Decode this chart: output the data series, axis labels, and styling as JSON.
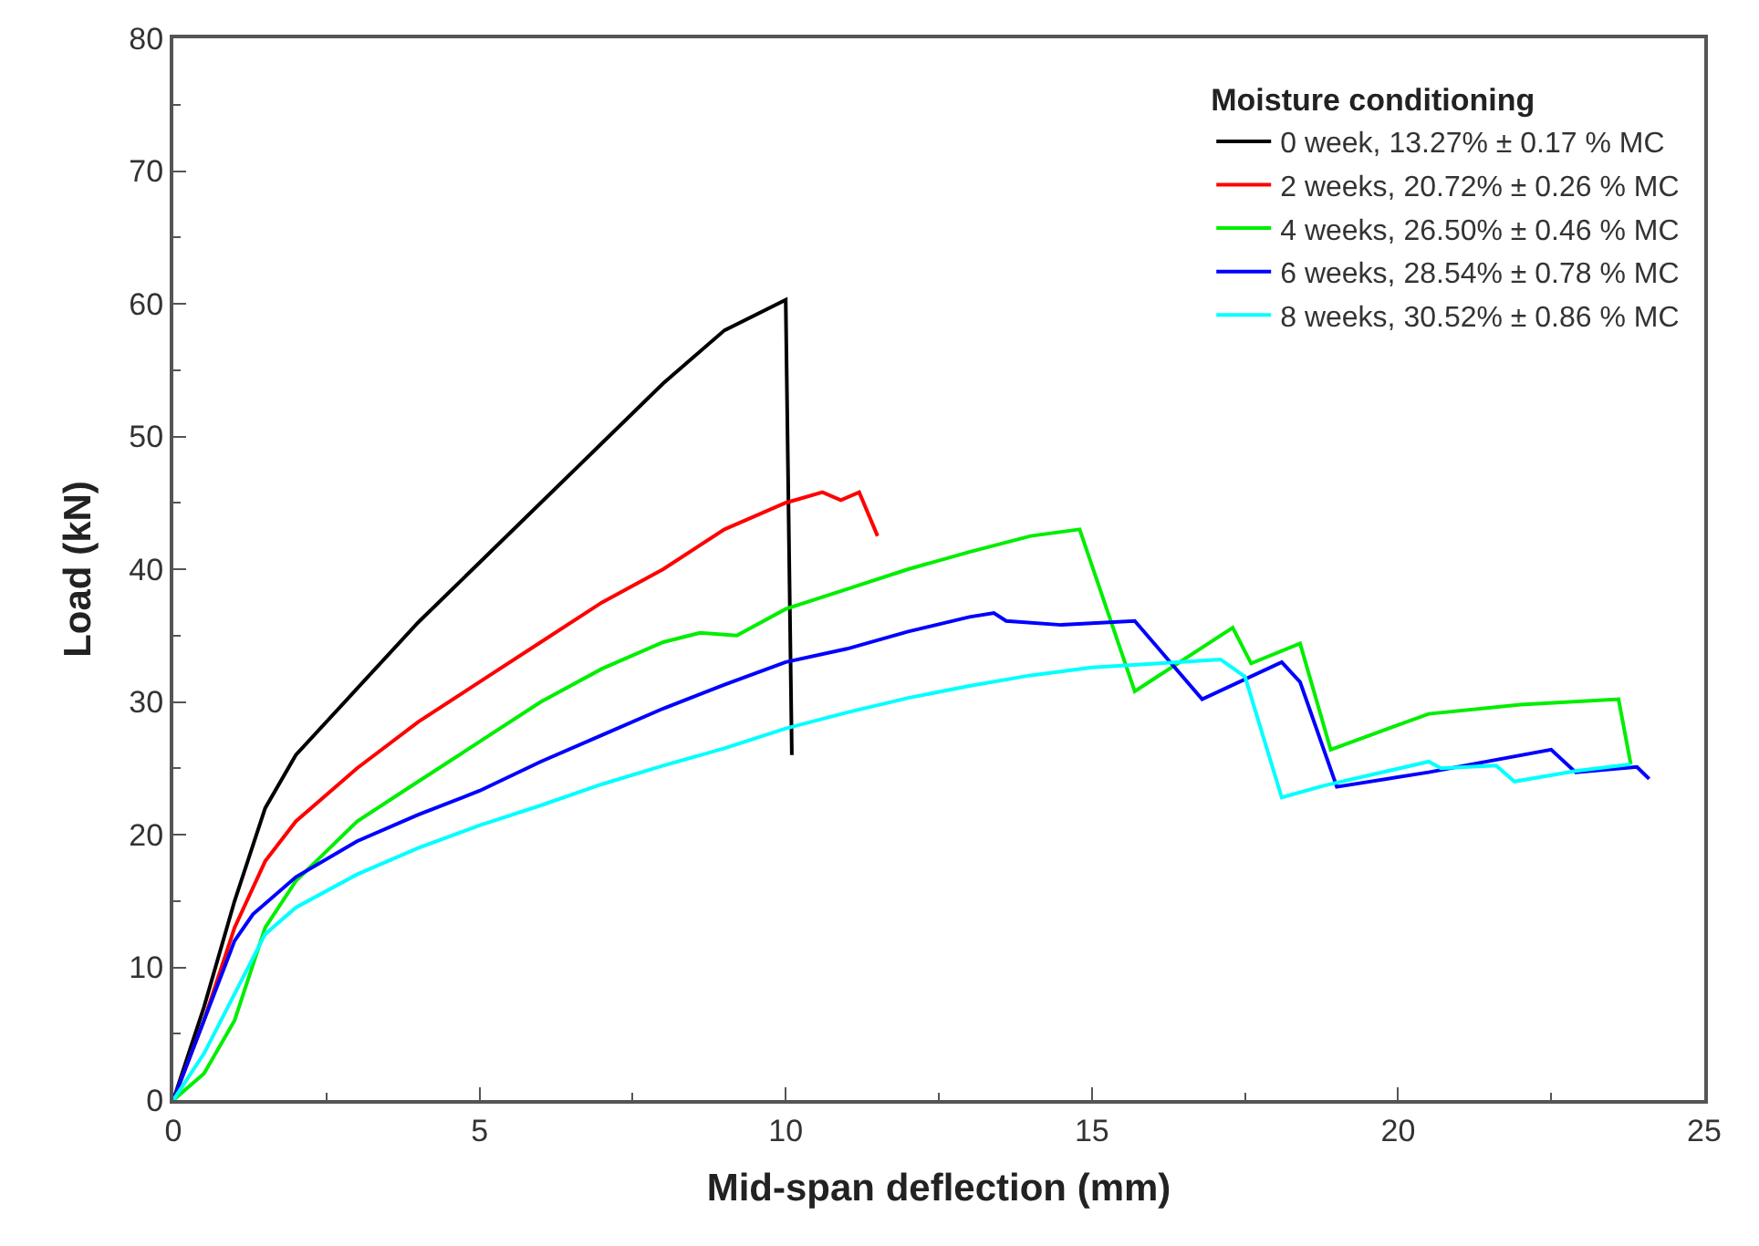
{
  "chart_data": {
    "type": "line",
    "xlabel": "Mid-span deflection (mm)",
    "ylabel": "Load (kN)",
    "legend_title": "Moisture conditioning",
    "legend": "top right",
    "marker": "none",
    "line_style": "solid",
    "xlim": [
      0,
      25
    ],
    "xticks": [
      0,
      5,
      10,
      15,
      20,
      25
    ],
    "ylim": [
      0,
      80
    ],
    "yticks": [
      0,
      10,
      20,
      30,
      40,
      50,
      60,
      70,
      80
    ],
    "series": [
      {
        "name": "0 week, 13.27% ± 0.17 % MC",
        "color": "#000000",
        "x": [
          0,
          0.5,
          1,
          1.5,
          2,
          3,
          4,
          5,
          6,
          7,
          8,
          9,
          10,
          10.1
        ],
        "values": [
          0,
          7,
          15,
          22,
          26,
          31,
          36,
          40.5,
          45,
          49.5,
          54,
          58,
          60.3,
          26
        ]
      },
      {
        "name": "2 weeks, 20.72% ± 0.26 % MC",
        "color": "#ff0000",
        "x": [
          0,
          0.5,
          1,
          1.5,
          2,
          3,
          4,
          5,
          6,
          7,
          8,
          9,
          10,
          10.6,
          10.9,
          11.2,
          11.5
        ],
        "values": [
          0,
          6,
          13,
          18,
          21,
          25,
          28.5,
          31.5,
          34.5,
          37.5,
          40,
          43,
          45,
          45.8,
          45.2,
          45.8,
          42.5
        ]
      },
      {
        "name": "4 weeks, 26.50% ± 0.46 % MC",
        "color": "#00ee00",
        "x": [
          0,
          0.5,
          1,
          1.5,
          2,
          3,
          4,
          5,
          6,
          7,
          8,
          8.6,
          9.2,
          10,
          11,
          12,
          13,
          14,
          14.8,
          15.7,
          17.3,
          17.6,
          18.4,
          18.9,
          20.5,
          22,
          23.6,
          23.8
        ],
        "values": [
          0,
          2,
          6,
          13,
          16.5,
          21,
          24,
          27,
          30,
          32.5,
          34.5,
          35.2,
          35,
          37,
          38.5,
          40,
          41.3,
          42.5,
          43,
          30.8,
          35.6,
          32.9,
          34.4,
          26.4,
          29.1,
          29.8,
          30.2,
          25.3
        ]
      },
      {
        "name": "6 weeks, 28.54% ± 0.78 % MC",
        "color": "#0000ff",
        "x": [
          0,
          0.5,
          1,
          1.3,
          2,
          3,
          4,
          5,
          6,
          7,
          8,
          9,
          10,
          11,
          12,
          13,
          13.4,
          13.6,
          14.5,
          15.7,
          16.8,
          18.1,
          18.4,
          19,
          20.5,
          22.5,
          22.9,
          23.9,
          24.1
        ],
        "values": [
          0,
          6,
          12,
          14,
          16.8,
          19.5,
          21.5,
          23.3,
          25.5,
          27.5,
          29.5,
          31.3,
          33,
          34,
          35.3,
          36.4,
          36.7,
          36.1,
          35.8,
          36.1,
          30.2,
          33,
          31.5,
          23.6,
          24.7,
          26.4,
          24.7,
          25.1,
          24.2
        ]
      },
      {
        "name": "8 weeks, 30.52% ± 0.86 % MC",
        "color": "#00ffff",
        "x": [
          0,
          0.5,
          1,
          1.5,
          2,
          3,
          4,
          5,
          6,
          7,
          8,
          9,
          10,
          11,
          12,
          13,
          14,
          15,
          16.1,
          17.1,
          17.5,
          18.1,
          18.8,
          20.5,
          20.7,
          21.6,
          21.9,
          22.9,
          23.8
        ],
        "values": [
          0,
          3.5,
          8,
          12.5,
          14.5,
          17,
          19,
          20.7,
          22.2,
          23.8,
          25.2,
          26.5,
          28,
          29.2,
          30.3,
          31.2,
          32,
          32.6,
          32.9,
          33.2,
          31.9,
          22.8,
          23.7,
          25.5,
          25,
          25.2,
          24,
          24.8,
          25.3
        ]
      }
    ]
  }
}
